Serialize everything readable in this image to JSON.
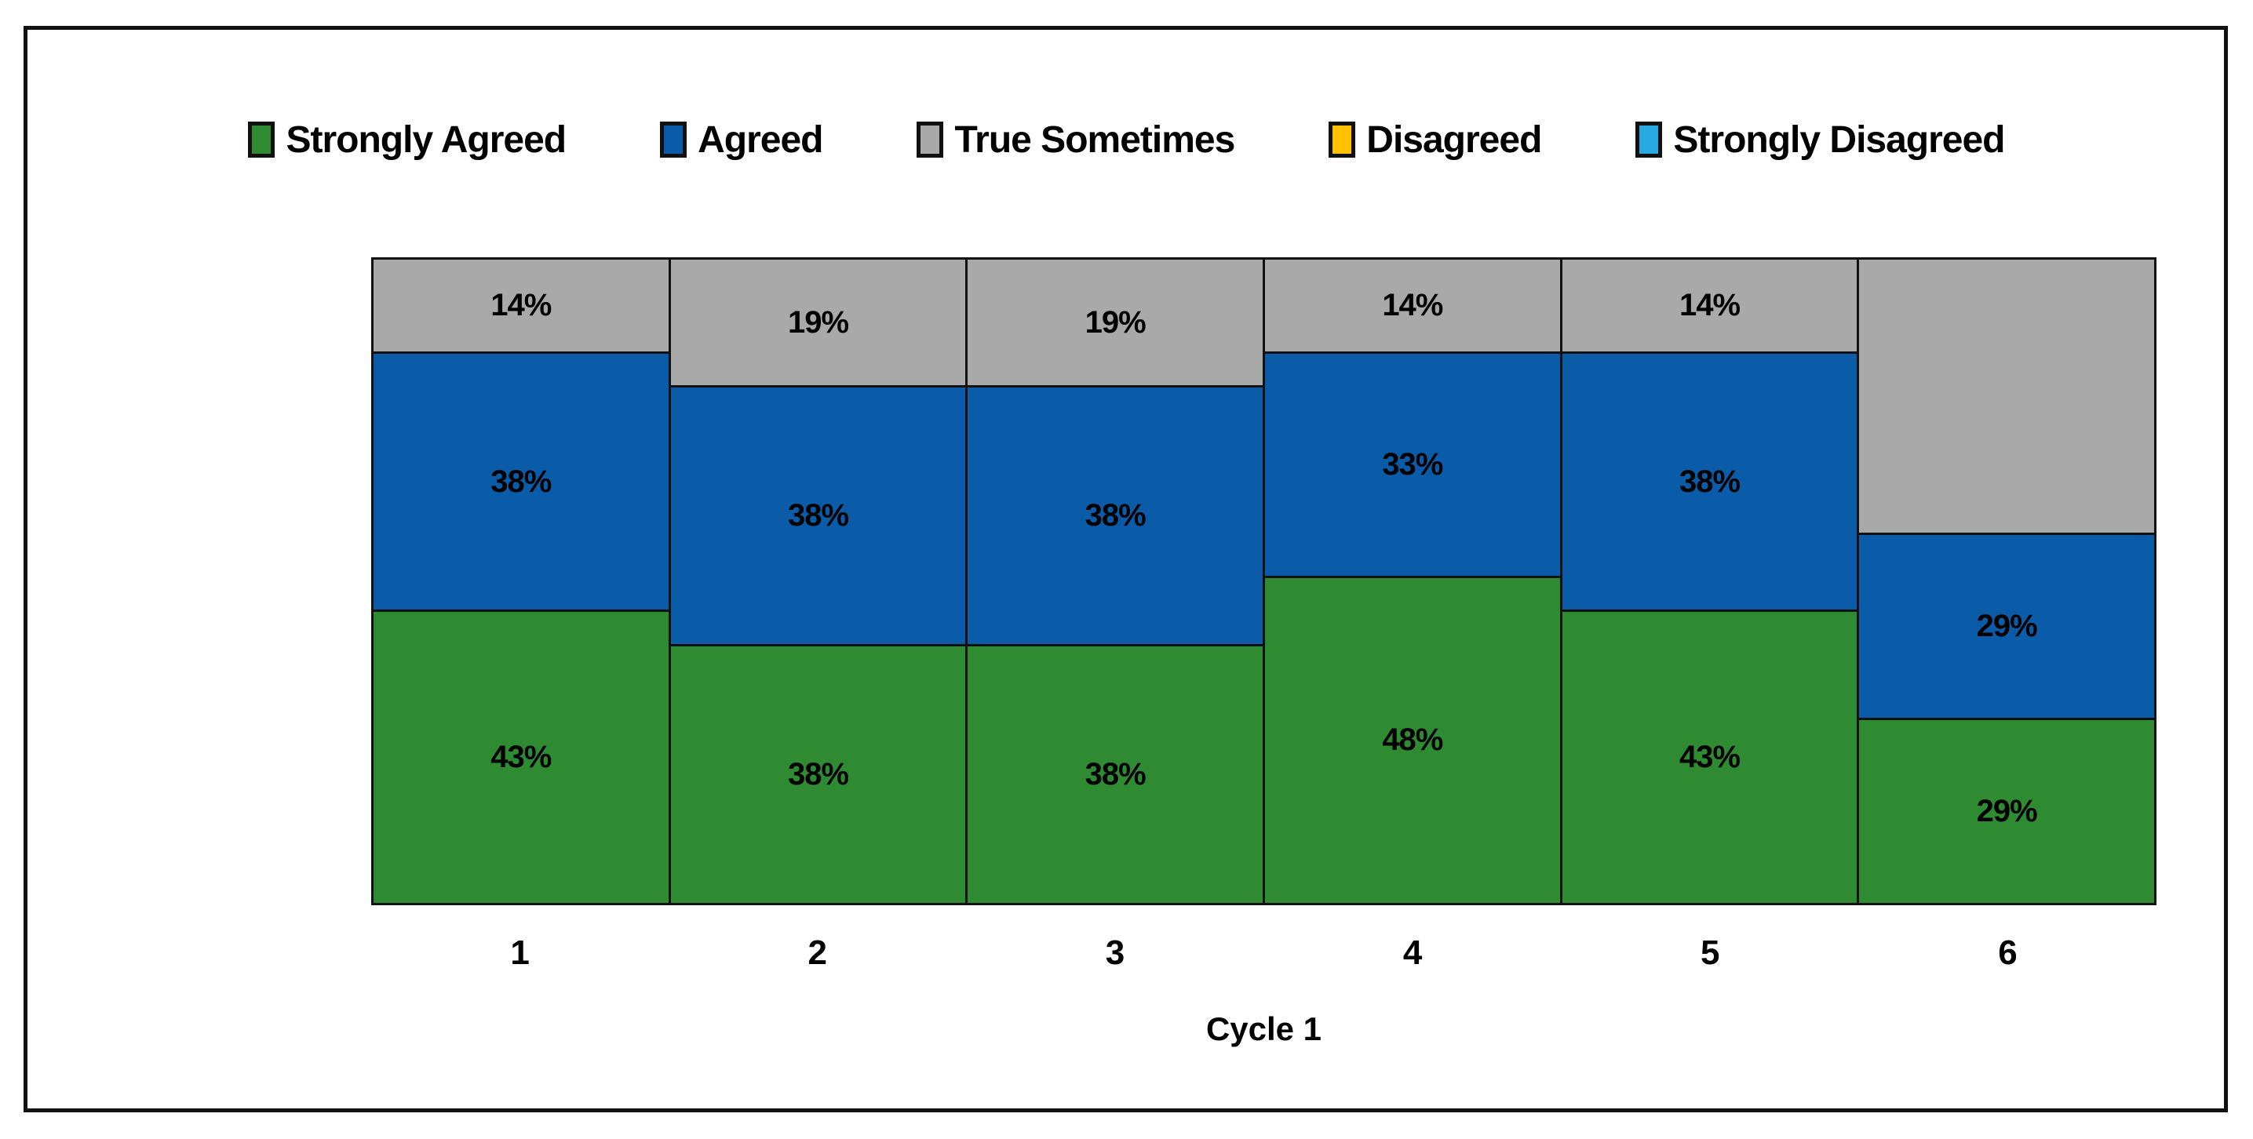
{
  "chart_data": {
    "type": "bar",
    "subtype": "stacked-100-percent-column",
    "categories": [
      "1",
      "2",
      "3",
      "4",
      "5",
      "6"
    ],
    "series": [
      {
        "name": "Strongly Agreed",
        "color": "#2E8B31",
        "values": [
          43,
          38,
          38,
          48,
          43,
          29
        ],
        "labels": [
          "43%",
          "38%",
          "38%",
          "48%",
          "43%",
          "29%"
        ]
      },
      {
        "name": "Agreed",
        "color": "#0B5CA8",
        "values": [
          38,
          38,
          38,
          33,
          38,
          29
        ],
        "labels": [
          "38%",
          "38%",
          "38%",
          "33%",
          "38%",
          "29%"
        ]
      },
      {
        "name": "True Sometimes",
        "color": "#A9A9A9",
        "values": [
          14,
          19,
          19,
          14,
          14,
          43
        ],
        "labels": [
          "14%",
          "19%",
          "19%",
          "14%",
          "14%",
          ""
        ]
      },
      {
        "name": "Disagreed",
        "color": "#FFC000",
        "values": [
          0,
          0,
          0,
          0,
          0,
          0
        ],
        "labels": [
          "",
          "",
          "",
          "",
          "",
          ""
        ]
      },
      {
        "name": "Strongly Disagreed",
        "color": "#29A9E1",
        "values": [
          0,
          0,
          0,
          0,
          0,
          0
        ],
        "labels": [
          "",
          "",
          "",
          "",
          "",
          ""
        ]
      }
    ],
    "xlabel": "Cycle 1",
    "ylim": [
      0,
      100
    ],
    "grid": false,
    "legend_position": "top",
    "border_color": "#111111"
  }
}
